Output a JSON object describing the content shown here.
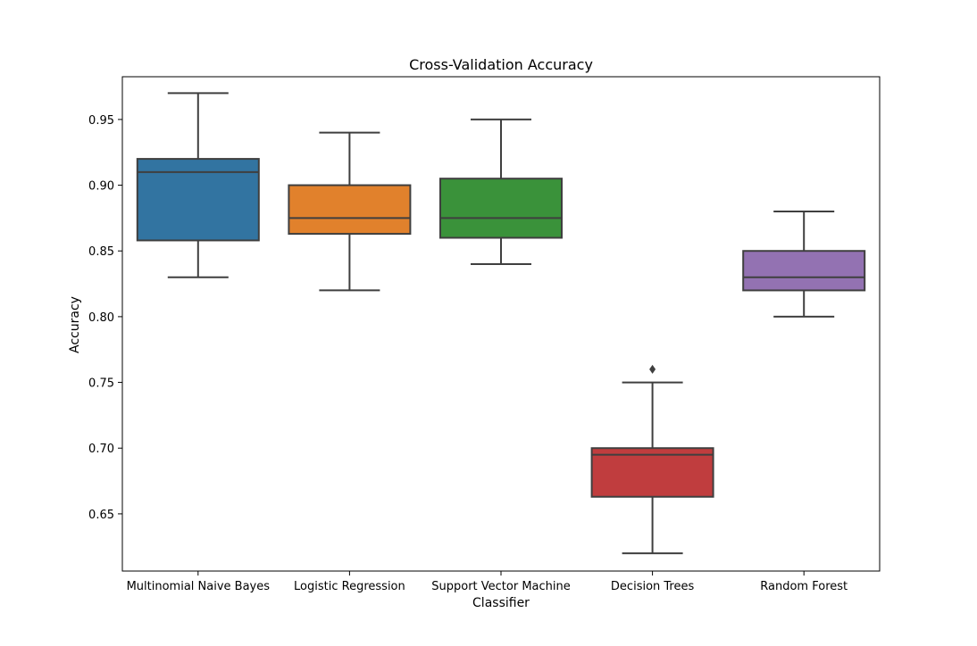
{
  "chart_data": {
    "type": "box",
    "title": "Cross-Validation Accuracy",
    "xlabel": "Classifier",
    "ylabel": "Accuracy",
    "ylim": [
      0.6065,
      0.9825
    ],
    "yticks": [
      0.65,
      0.7,
      0.75,
      0.8,
      0.85,
      0.9,
      0.95
    ],
    "ytick_labels": [
      "0.65",
      "0.70",
      "0.75",
      "0.80",
      "0.85",
      "0.90",
      "0.95"
    ],
    "grid": false,
    "categories": [
      "Multinomial Naive Bayes",
      "Logistic Regression",
      "Support Vector Machine",
      "Decision Trees",
      "Random Forest"
    ],
    "series": [
      {
        "category": "Multinomial Naive Bayes",
        "whisker_low": 0.83,
        "q1": 0.858,
        "median": 0.91,
        "q3": 0.92,
        "whisker_high": 0.97,
        "outliers": [],
        "color": "#3274a1"
      },
      {
        "category": "Logistic Regression",
        "whisker_low": 0.82,
        "q1": 0.863,
        "median": 0.875,
        "q3": 0.9,
        "whisker_high": 0.94,
        "outliers": [],
        "color": "#e1812c"
      },
      {
        "category": "Support Vector Machine",
        "whisker_low": 0.84,
        "q1": 0.86,
        "median": 0.875,
        "q3": 0.905,
        "whisker_high": 0.95,
        "outliers": [],
        "color": "#3a923a"
      },
      {
        "category": "Decision Trees",
        "whisker_low": 0.62,
        "q1": 0.663,
        "median": 0.695,
        "q3": 0.7,
        "whisker_high": 0.75,
        "outliers": [
          0.76
        ],
        "color": "#c03d3e"
      },
      {
        "category": "Random Forest",
        "whisker_low": 0.8,
        "q1": 0.82,
        "median": 0.83,
        "q3": 0.85,
        "whisker_high": 0.88,
        "outliers": [],
        "color": "#9372b2"
      }
    ]
  }
}
